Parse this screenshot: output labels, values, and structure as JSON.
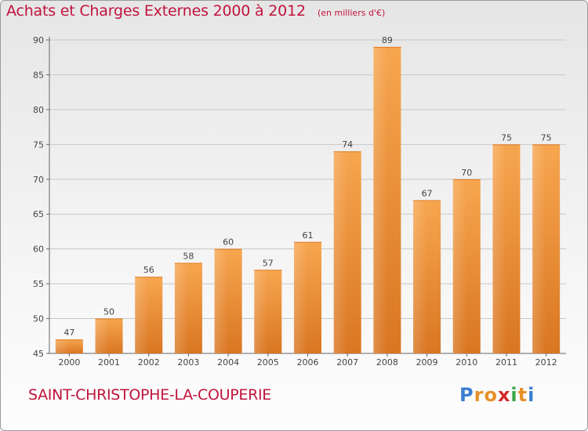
{
  "header": {
    "title": "Achats et Charges Externes 2000 à 2012",
    "subtitle": "(en milliers d'€)"
  },
  "commune": "SAINT-CHRISTOPHE-LA-COUPERIE",
  "logo": {
    "letters": [
      "P",
      "r",
      "o",
      "x",
      "i",
      "t",
      "i"
    ],
    "colors": [
      "#3a7fd0",
      "#e8902a",
      "#e8902a",
      "#d42a2a",
      "#3aa64a",
      "#e8902a",
      "#3a7fd0"
    ]
  },
  "chart_data": {
    "type": "bar",
    "title": "Achats et Charges Externes 2000 à 2012",
    "categories": [
      "2000",
      "2001",
      "2002",
      "2003",
      "2004",
      "2005",
      "2006",
      "2007",
      "2008",
      "2009",
      "2010",
      "2011",
      "2012"
    ],
    "values": [
      47,
      50,
      56,
      58,
      60,
      57,
      61,
      74,
      89,
      67,
      70,
      75,
      75
    ],
    "ylim": [
      45,
      90
    ],
    "yticks": [
      45,
      50,
      55,
      60,
      65,
      70,
      75,
      80,
      85,
      90
    ],
    "grid": true,
    "bar_color": "#f0963a"
  }
}
